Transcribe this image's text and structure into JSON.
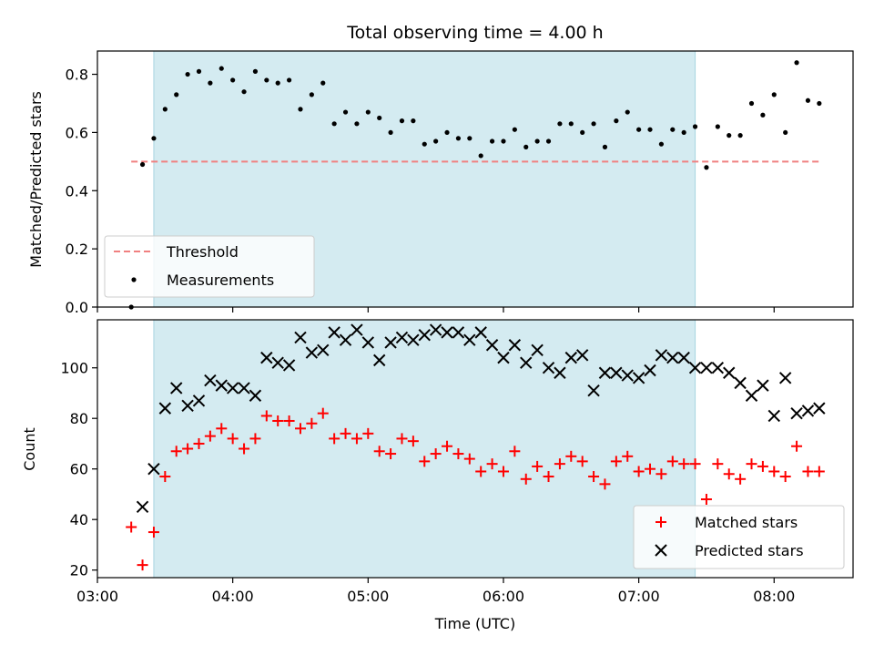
{
  "chart_data": [
    {
      "type": "scatter",
      "title": "Total observing time = 4.00 h",
      "xlabel": "",
      "ylabel": "Matched/Predicted stars",
      "ylim": [
        0,
        0.88
      ],
      "yticks": [
        0.0,
        0.2,
        0.4,
        0.6,
        0.8
      ],
      "ytick_labels": [
        "0.0",
        "0.2",
        "0.4",
        "0.6",
        "0.8"
      ],
      "shaded_span": [
        "03:25",
        "07:25"
      ],
      "shade_color": "#d4ebf1",
      "threshold": {
        "name": "Threshold",
        "value": 0.5,
        "x_range": [
          "03:15",
          "08:20"
        ],
        "color": "#f08080"
      },
      "legend": {
        "placement": "lower-left",
        "entries": [
          "Threshold",
          "Measurements"
        ]
      },
      "series": [
        {
          "name": "Measurements",
          "marker": "dot",
          "color": "#000000",
          "x": [
            "03:15",
            "03:20",
            "03:25",
            "03:30",
            "03:35",
            "03:40",
            "03:45",
            "03:50",
            "03:55",
            "04:00",
            "04:05",
            "04:10",
            "04:15",
            "04:20",
            "04:25",
            "04:30",
            "04:35",
            "04:40",
            "04:45",
            "04:50",
            "04:55",
            "05:00",
            "05:05",
            "05:10",
            "05:15",
            "05:20",
            "05:25",
            "05:30",
            "05:35",
            "05:40",
            "05:45",
            "05:50",
            "05:55",
            "06:00",
            "06:05",
            "06:10",
            "06:15",
            "06:20",
            "06:25",
            "06:30",
            "06:35",
            "06:40",
            "06:45",
            "06:50",
            "06:55",
            "07:00",
            "07:05",
            "07:10",
            "07:15",
            "07:20",
            "07:25",
            "07:30",
            "07:35",
            "07:40",
            "07:45",
            "07:50",
            "07:55",
            "08:00",
            "08:05",
            "08:10",
            "08:15",
            "08:20"
          ],
          "y": [
            0.0,
            0.49,
            0.58,
            0.68,
            0.73,
            0.8,
            0.81,
            0.77,
            0.82,
            0.78,
            0.74,
            0.81,
            0.78,
            0.77,
            0.78,
            0.68,
            0.73,
            0.77,
            0.63,
            0.67,
            0.63,
            0.67,
            0.65,
            0.6,
            0.64,
            0.64,
            0.56,
            0.57,
            0.6,
            0.58,
            0.58,
            0.52,
            0.57,
            0.57,
            0.61,
            0.55,
            0.57,
            0.57,
            0.63,
            0.63,
            0.6,
            0.63,
            0.55,
            0.64,
            0.67,
            0.61,
            0.61,
            0.56,
            0.61,
            0.6,
            0.62,
            0.48,
            0.62,
            0.59,
            0.59,
            0.7,
            0.66,
            0.73,
            0.6,
            0.84,
            0.71,
            0.7
          ]
        }
      ]
    },
    {
      "type": "scatter",
      "title": "",
      "xlabel": "Time (UTC)",
      "ylabel": "Count",
      "ylim": [
        17,
        119
      ],
      "yticks": [
        20,
        40,
        60,
        80,
        100
      ],
      "ytick_labels": [
        "20",
        "40",
        "60",
        "80",
        "100"
      ],
      "xlim": [
        "03:00",
        "08:35"
      ],
      "xticks": [
        "03:00",
        "04:00",
        "05:00",
        "06:00",
        "07:00",
        "08:00"
      ],
      "xtick_labels": [
        "03:00",
        "04:00",
        "05:00",
        "06:00",
        "07:00",
        "08:00"
      ],
      "shaded_span": [
        "03:25",
        "07:25"
      ],
      "shade_color": "#d4ebf1",
      "legend": {
        "placement": "lower-right",
        "entries": [
          "Matched stars",
          "Predicted stars"
        ]
      },
      "series": [
        {
          "name": "Matched stars",
          "marker": "plus",
          "color": "#ff0000",
          "x": [
            "03:15",
            "03:20",
            "03:25",
            "03:30",
            "03:35",
            "03:40",
            "03:45",
            "03:50",
            "03:55",
            "04:00",
            "04:05",
            "04:10",
            "04:15",
            "04:20",
            "04:25",
            "04:30",
            "04:35",
            "04:40",
            "04:45",
            "04:50",
            "04:55",
            "05:00",
            "05:05",
            "05:10",
            "05:15",
            "05:20",
            "05:25",
            "05:30",
            "05:35",
            "05:40",
            "05:45",
            "05:50",
            "05:55",
            "06:00",
            "06:05",
            "06:10",
            "06:15",
            "06:20",
            "06:25",
            "06:30",
            "06:35",
            "06:40",
            "06:45",
            "06:50",
            "06:55",
            "07:00",
            "07:05",
            "07:10",
            "07:15",
            "07:20",
            "07:25",
            "07:30",
            "07:35",
            "07:40",
            "07:45",
            "07:50",
            "07:55",
            "08:00",
            "08:05",
            "08:10",
            "08:15",
            "08:20"
          ],
          "y": [
            37,
            22,
            35,
            57,
            67,
            68,
            70,
            73,
            76,
            72,
            68,
            72,
            81,
            79,
            79,
            76,
            78,
            82,
            72,
            74,
            72,
            74,
            67,
            66,
            72,
            71,
            63,
            66,
            69,
            66,
            64,
            59,
            62,
            59,
            67,
            56,
            61,
            57,
            62,
            65,
            63,
            57,
            54,
            63,
            65,
            59,
            60,
            58,
            63,
            62,
            62,
            48,
            62,
            58,
            56,
            62,
            61,
            59,
            57,
            69,
            59,
            59
          ]
        },
        {
          "name": "Predicted stars",
          "marker": "x",
          "color": "#000000",
          "x": [
            "03:20",
            "03:25",
            "03:30",
            "03:35",
            "03:40",
            "03:45",
            "03:50",
            "03:55",
            "04:00",
            "04:05",
            "04:10",
            "04:15",
            "04:20",
            "04:25",
            "04:30",
            "04:35",
            "04:40",
            "04:45",
            "04:50",
            "04:55",
            "05:00",
            "05:05",
            "05:10",
            "05:15",
            "05:20",
            "05:25",
            "05:30",
            "05:35",
            "05:40",
            "05:45",
            "05:50",
            "05:55",
            "06:00",
            "06:05",
            "06:10",
            "06:15",
            "06:20",
            "06:25",
            "06:30",
            "06:35",
            "06:40",
            "06:45",
            "06:50",
            "06:55",
            "07:00",
            "07:05",
            "07:10",
            "07:15",
            "07:20",
            "07:25",
            "07:30",
            "07:35",
            "07:40",
            "07:45",
            "07:50",
            "07:55",
            "08:00",
            "08:05",
            "08:10",
            "08:15",
            "08:20"
          ],
          "y": [
            45,
            60,
            84,
            92,
            85,
            87,
            95,
            93,
            92,
            92,
            89,
            104,
            102,
            101,
            112,
            106,
            107,
            114,
            111,
            115,
            110,
            103,
            110,
            112,
            111,
            113,
            115,
            114,
            114,
            111,
            114,
            109,
            104,
            109,
            102,
            107,
            100,
            98,
            104,
            105,
            91,
            98,
            98,
            97,
            96,
            99,
            105,
            104,
            104,
            100,
            100,
            100,
            98,
            94,
            89,
            93,
            81,
            96,
            82,
            83,
            84
          ]
        }
      ]
    }
  ]
}
